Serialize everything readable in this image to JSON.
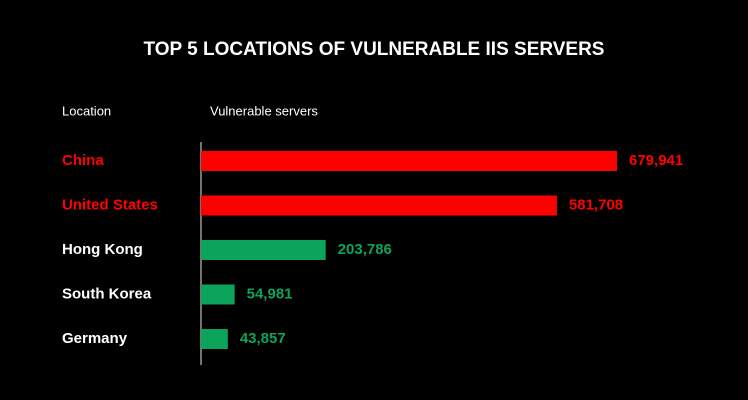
{
  "chart_data": {
    "type": "hbar",
    "title": "TOP 5 LOCATIONS OF VULNERABLE IIS SERVERS",
    "category_header": "Location",
    "value_header": "Vulnerable servers",
    "categories": [
      "China",
      "United States",
      "Hong Kong",
      "South Korea",
      "Germany"
    ],
    "values": [
      679941,
      581708,
      203786,
      54981,
      43857
    ],
    "value_labels": [
      "679,941",
      "581,708",
      "203,786",
      "54,981",
      "43,857"
    ],
    "colors": [
      "#ff0000",
      "#ff0000",
      "#0ca45a",
      "#0ca45a",
      "#0ca45a"
    ],
    "category_colors": [
      "#ff0000",
      "#ff0000",
      "#ffffff",
      "#ffffff",
      "#ffffff"
    ]
  }
}
